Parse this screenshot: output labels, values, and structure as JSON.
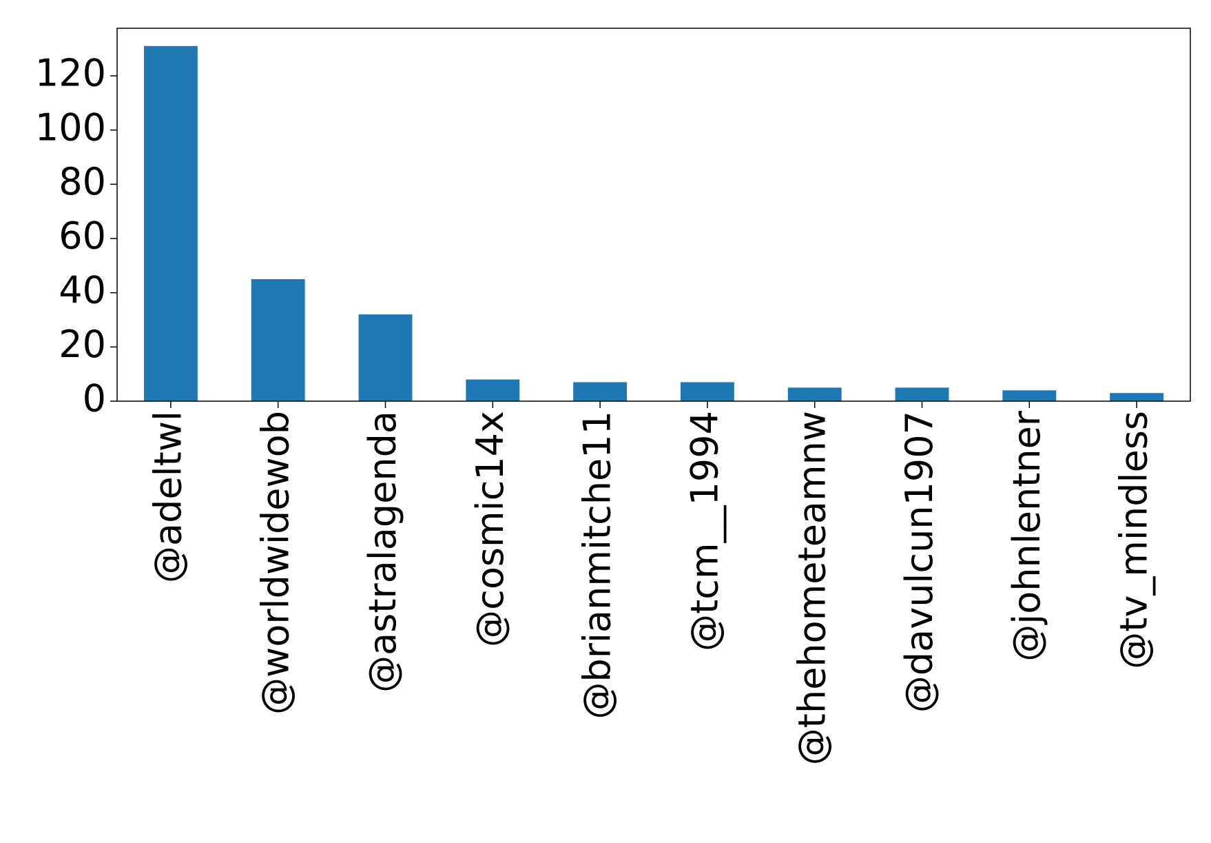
{
  "chart_data": {
    "type": "bar",
    "categories": [
      "@adeltwl",
      "@worldwidewob",
      "@astralagenda",
      "@cosmic14x",
      "@brianmitche11",
      "@tcm__1994",
      "@thehometeamnw",
      "@davulcun1907",
      "@johnlentner",
      "@tv_mindless"
    ],
    "values": [
      131,
      45,
      32,
      8,
      7,
      7,
      5,
      5,
      4,
      3
    ],
    "color": "#1f77b4",
    "ylim": [
      0,
      137.55
    ],
    "yticks": [
      0,
      20,
      40,
      60,
      80,
      100,
      120
    ],
    "grid": false
  }
}
